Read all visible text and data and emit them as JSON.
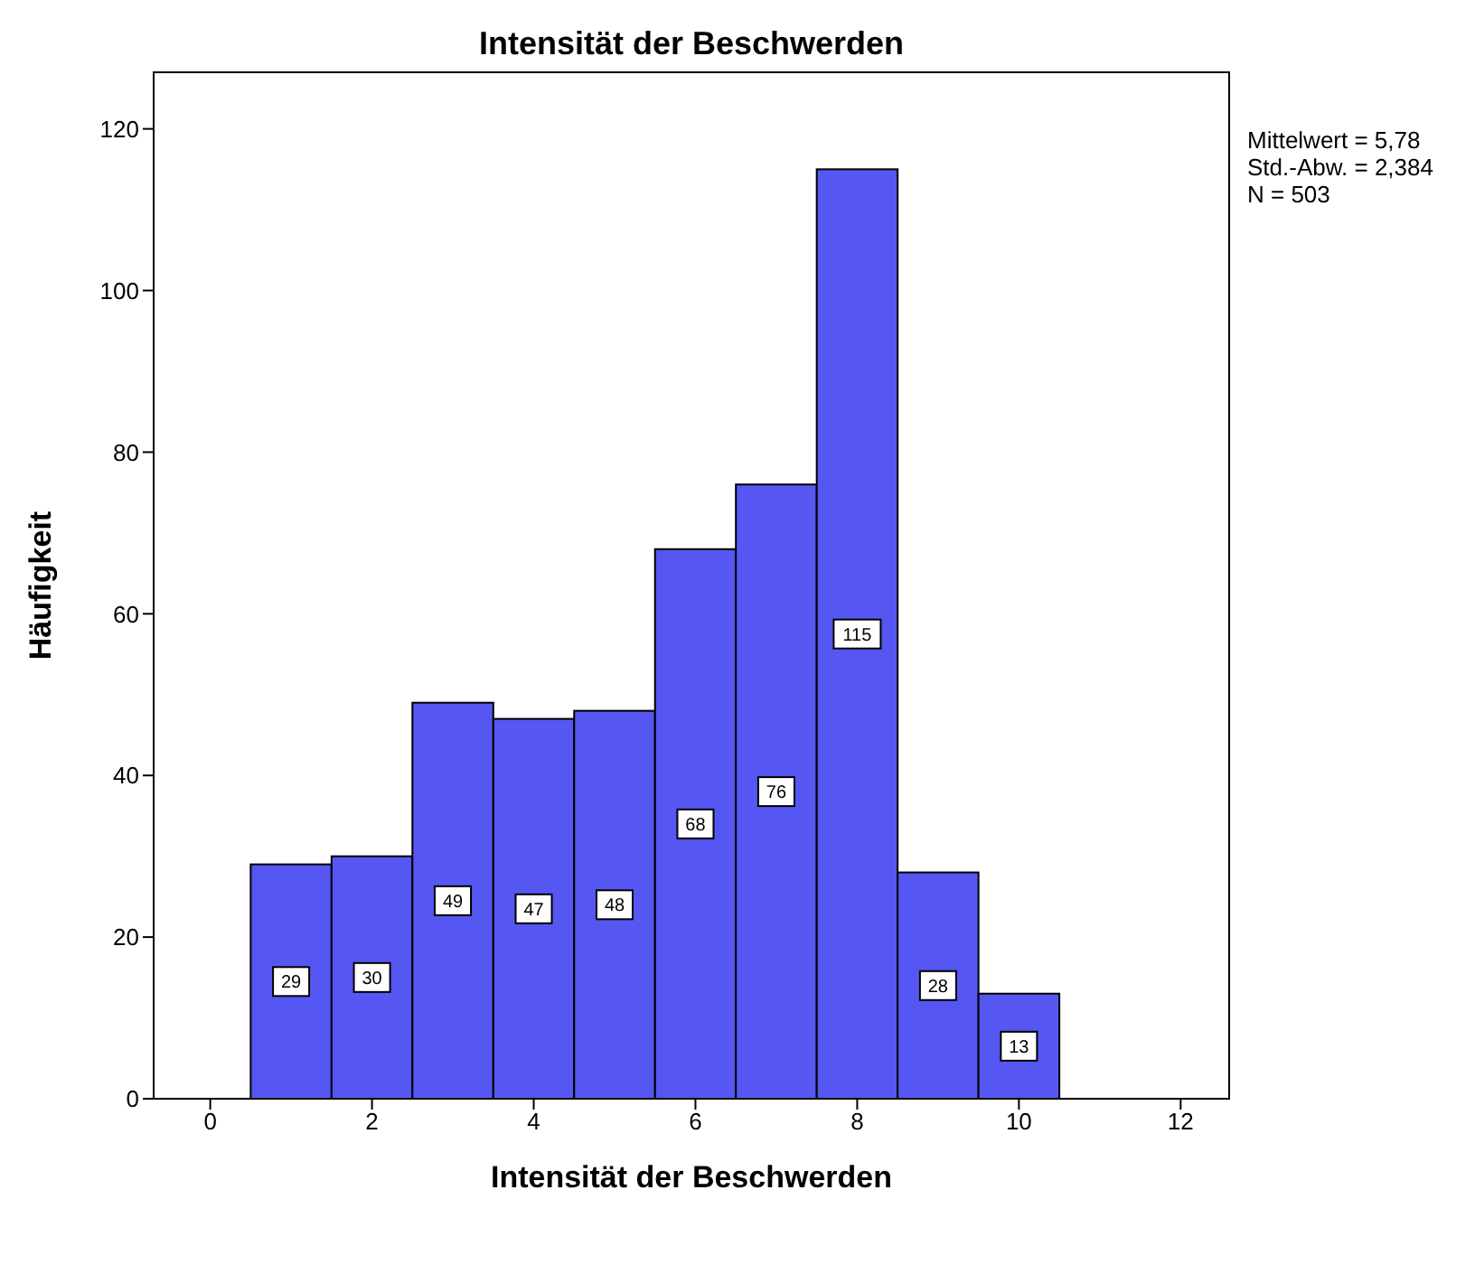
{
  "chart_data": {
    "type": "histogram",
    "title": "Intensität der Beschwerden",
    "xlabel": "Intensität der Beschwerden",
    "ylabel": "Häufigkeit",
    "bins": [
      0.5,
      1.5,
      2.5,
      3.5,
      4.5,
      5.5,
      6.5,
      7.5,
      8.5,
      9.5,
      10.5
    ],
    "values": [
      29,
      30,
      49,
      47,
      48,
      68,
      76,
      115,
      28,
      13
    ],
    "color": "#5656f2",
    "xlim": [
      -0.7,
      12.6
    ],
    "xticks": [
      0,
      2,
      4,
      6,
      8,
      10,
      12
    ],
    "ylim": [
      0,
      127
    ],
    "yticks": [
      0,
      20,
      40,
      60,
      80,
      100,
      120
    ],
    "data_labels": true,
    "annotations": [
      "Mittelwert = 5,78",
      "Std.-Abw. = 2,384",
      "N = 503"
    ]
  }
}
